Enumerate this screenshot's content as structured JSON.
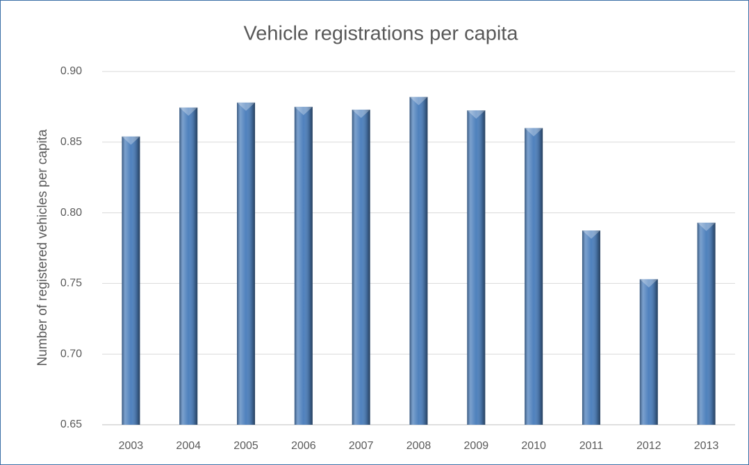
{
  "chart_data": {
    "type": "bar",
    "title": "Vehicle registrations per capita",
    "y_label": "Number of registered vehicles per capita",
    "categories": [
      "2003",
      "2004",
      "2005",
      "2006",
      "2007",
      "2008",
      "2009",
      "2010",
      "2011",
      "2012",
      "2013"
    ],
    "values": [
      0.854,
      0.8745,
      0.878,
      0.875,
      0.873,
      0.882,
      0.8725,
      0.86,
      0.7875,
      0.753,
      0.793
    ],
    "color": "#4f81bd",
    "ylim": [
      0.65,
      0.9
    ],
    "yticks": [
      {
        "value": 0.65,
        "label": "0.65"
      },
      {
        "value": 0.7,
        "label": "0.70"
      },
      {
        "value": 0.75,
        "label": "0.75"
      },
      {
        "value": 0.8,
        "label": "0.80"
      },
      {
        "value": 0.85,
        "label": "0.85"
      },
      {
        "value": 0.9,
        "label": "0.90"
      }
    ],
    "grid": true
  }
}
